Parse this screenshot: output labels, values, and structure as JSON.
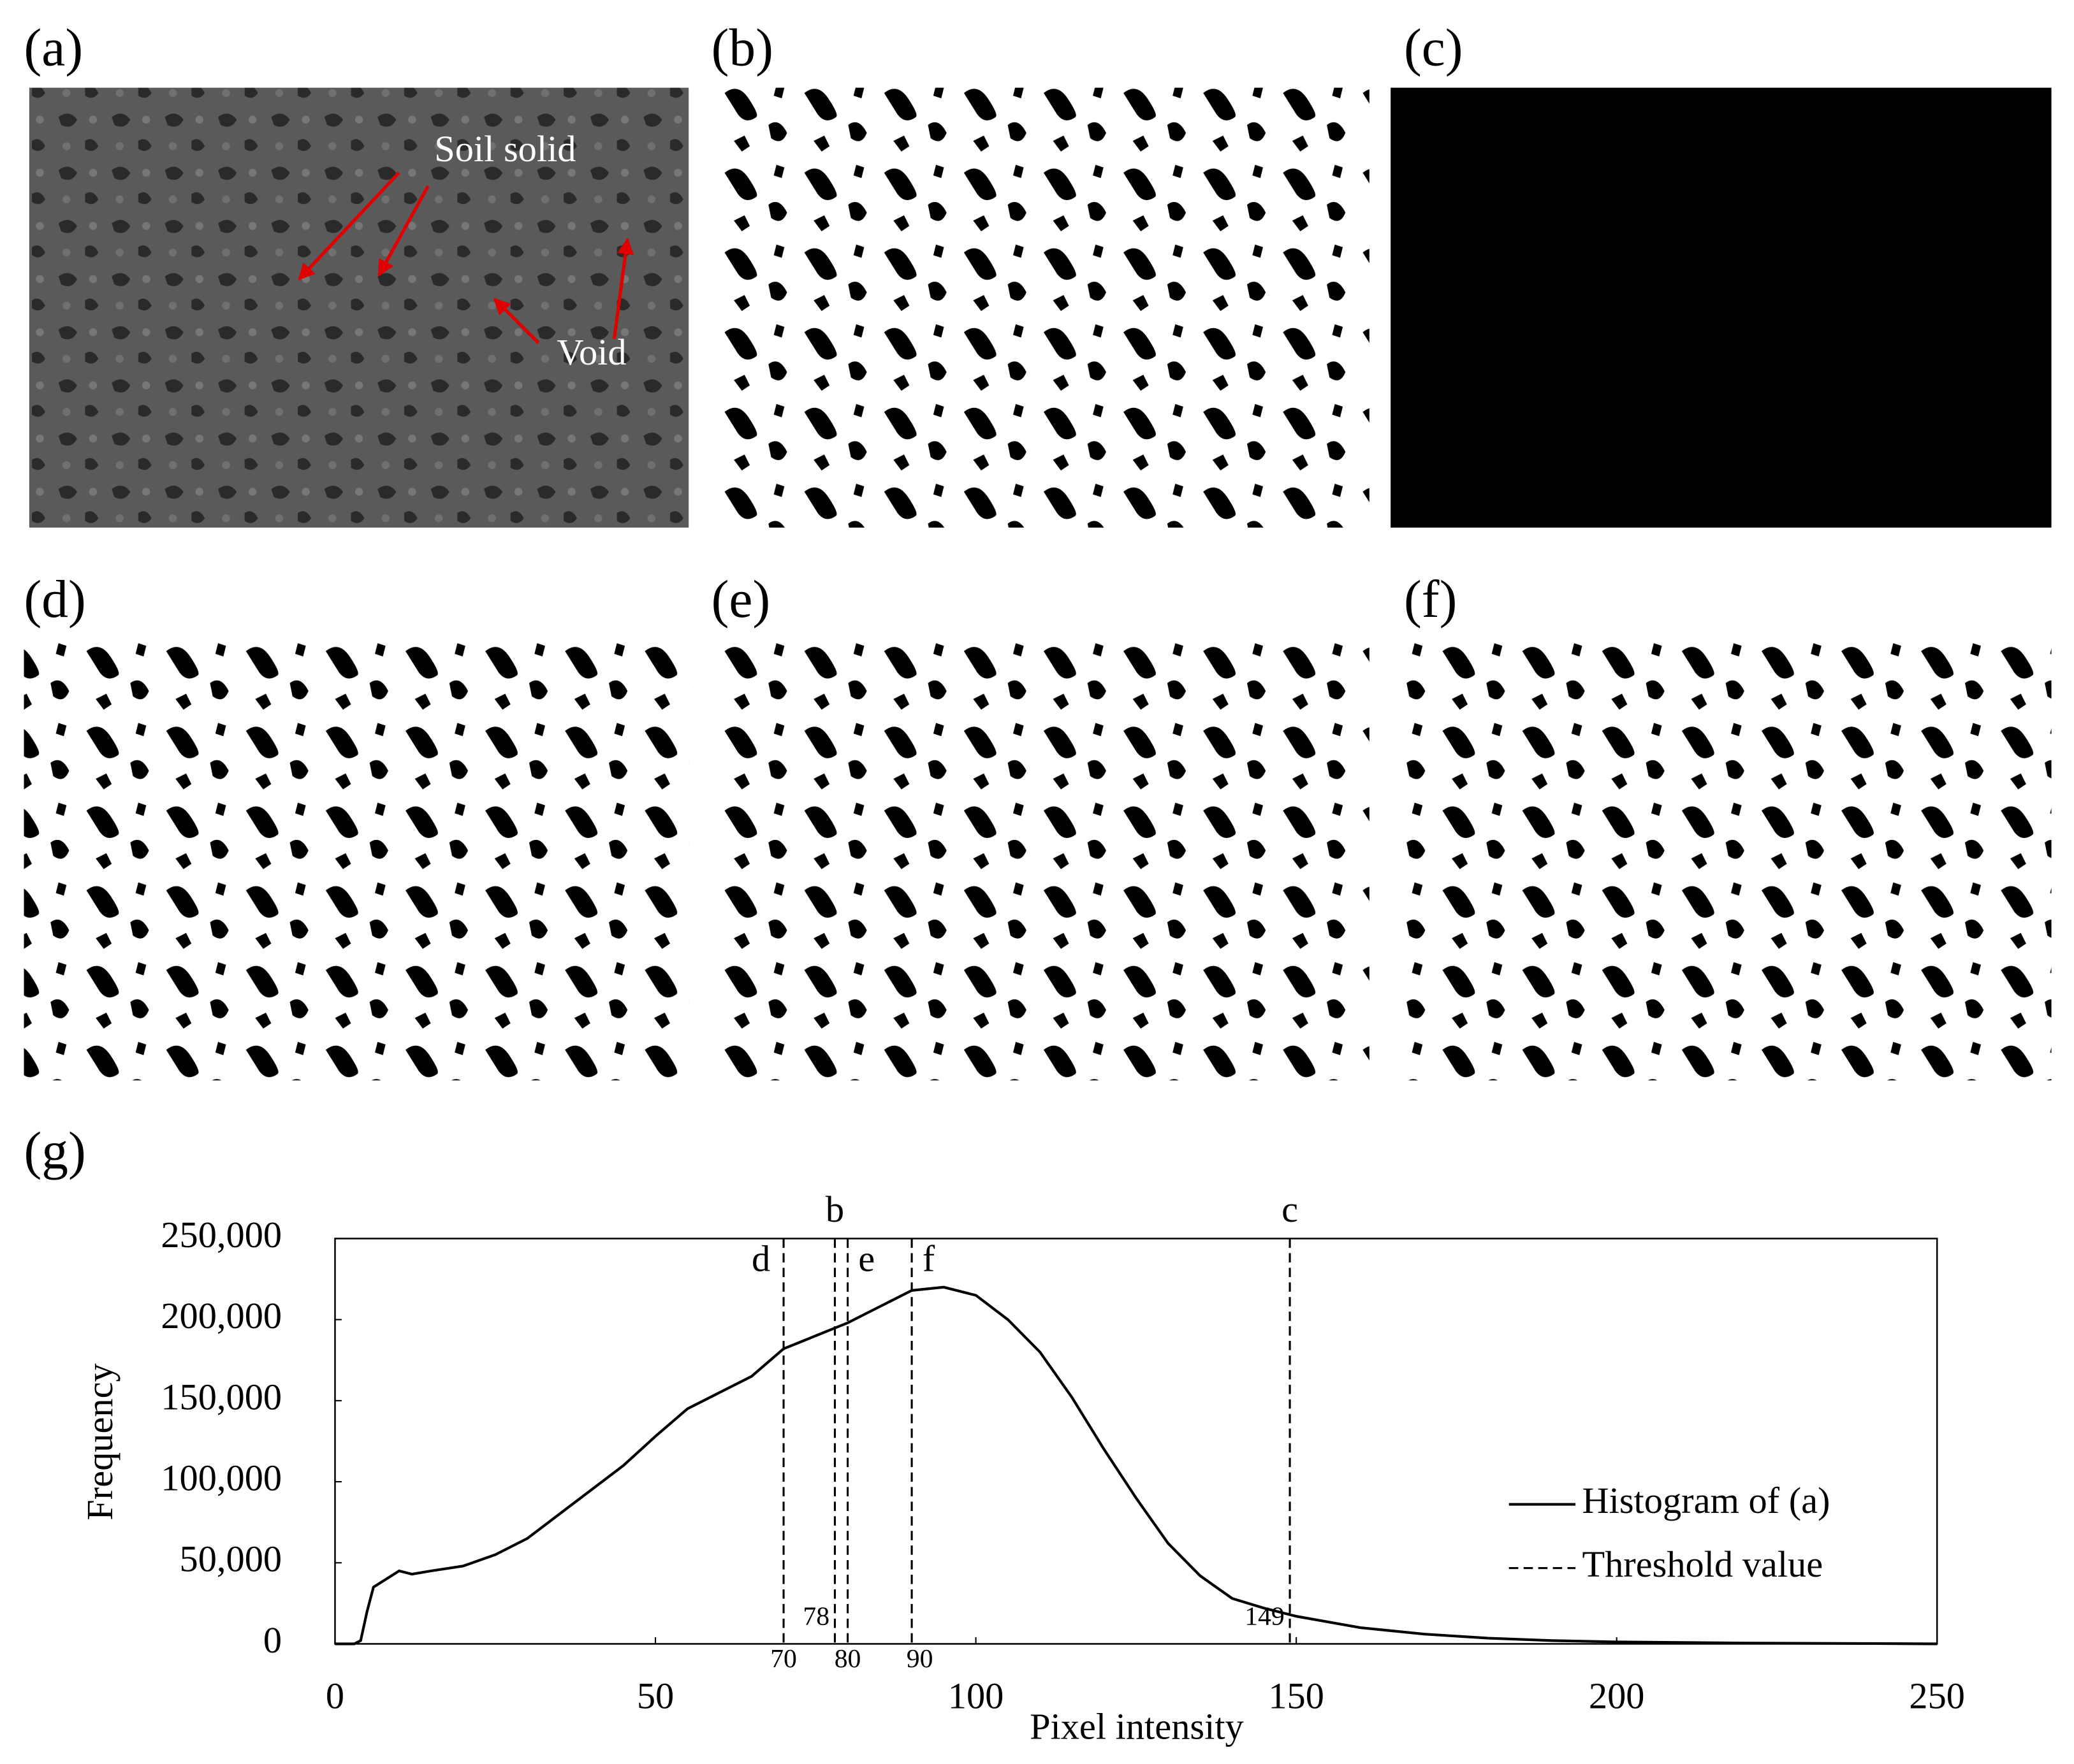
{
  "panels": [
    "(a)",
    "(b)",
    "(c)",
    "(d)",
    "(e)",
    "(f)"
  ],
  "annotations": [
    "Soil solid",
    "Void"
  ],
  "chart_data": {
    "type": "line",
    "panel_label": "(g)",
    "xlabel": "Pixel intensity",
    "ylabel": "Frequency",
    "x": [
      0,
      3,
      4,
      5,
      6,
      8,
      10,
      12,
      15,
      20,
      25,
      30,
      35,
      40,
      45,
      50,
      55,
      60,
      65,
      70,
      75,
      80,
      85,
      90,
      95,
      100,
      105,
      110,
      115,
      120,
      125,
      130,
      135,
      140,
      145,
      150,
      160,
      170,
      180,
      190,
      200,
      220,
      240,
      250
    ],
    "series": [
      {
        "name": "Histogram of (a)",
        "color": "#000000",
        "values": [
          0,
          0,
          2000,
          20000,
          35000,
          40000,
          45000,
          43000,
          45000,
          48000,
          55000,
          65000,
          80000,
          95000,
          110000,
          128000,
          145000,
          155000,
          165000,
          182000,
          190000,
          198000,
          208000,
          218000,
          220000,
          215000,
          200000,
          180000,
          152000,
          120000,
          90000,
          62000,
          42000,
          28000,
          22000,
          17000,
          10000,
          6000,
          3500,
          2000,
          1200,
          500,
          200,
          0
        ]
      }
    ],
    "thresholds": {
      "name": "Threshold value",
      "color": "#000000",
      "values": [
        70,
        78,
        80,
        90,
        149
      ],
      "labels": [
        "d",
        "b",
        "e",
        "f",
        "c"
      ]
    },
    "xlim": [
      0,
      250
    ],
    "ylim": [
      0,
      250000
    ],
    "xticks": [
      0,
      50,
      100,
      150,
      200,
      250
    ],
    "yticks": [
      0,
      {
        "value": 50000,
        "label": "50,000"
      },
      {
        "value": 100000,
        "label": "100,000"
      },
      {
        "value": 150000,
        "label": "150,000"
      },
      {
        "value": 200000,
        "label": "200,000"
      },
      {
        "value": 250000,
        "label": "250,000"
      }
    ],
    "legend": "lower right"
  }
}
